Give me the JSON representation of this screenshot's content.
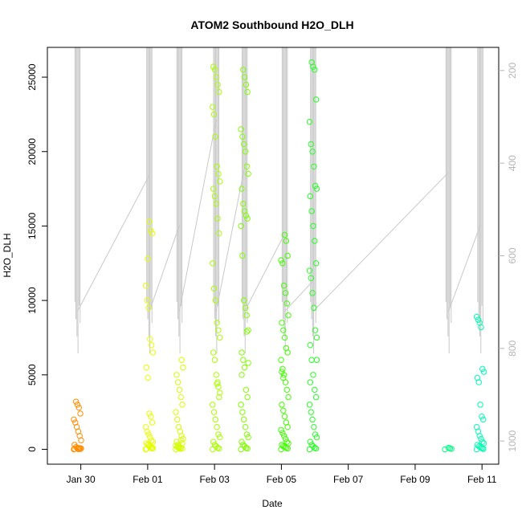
{
  "chart_data": {
    "type": "scatter",
    "title": "ATOM2 Southbound H2O_DLH",
    "xlabel": "Date",
    "ylabel": "H2O_DLH",
    "x_ticks": [
      "Jan 30",
      "Feb 01",
      "Feb 03",
      "Feb 05",
      "Feb 07",
      "Feb 09",
      "Feb 11"
    ],
    "x_tick_values": [
      29,
      31,
      33,
      35,
      37,
      39,
      41
    ],
    "xlim": [
      28,
      41.5
    ],
    "ylim": [
      -1000,
      27000
    ],
    "y_ticks": [
      0,
      5000,
      10000,
      15000,
      20000,
      25000
    ],
    "y2_label": "",
    "y2_ticks": [
      200,
      400,
      600,
      800,
      1000
    ],
    "y2_lim": [
      1050,
      150
    ],
    "grid": false,
    "point_clusters": [
      {
        "day": 28.9,
        "color": "#ff8c00",
        "values": [
          0,
          20,
          50,
          100,
          150,
          300,
          600,
          900,
          1200,
          1500,
          1800,
          2000,
          2400,
          2800,
          3000,
          3200,
          30,
          60,
          80,
          10
        ]
      },
      {
        "day": 31.05,
        "color": "#e6ff00",
        "values": [
          0,
          50,
          100,
          200,
          300,
          400,
          500,
          600,
          800,
          1000,
          1200,
          1500,
          1800,
          2200,
          2400,
          4800,
          5500,
          6500,
          7000,
          7400,
          9500,
          10000,
          11000,
          14500,
          14700,
          15300,
          12800,
          20,
          80,
          150,
          250,
          350
        ]
      },
      {
        "day": 31.95,
        "color": "#d4ff00",
        "values": [
          0,
          50,
          100,
          200,
          300,
          500,
          700,
          900,
          1200,
          1500,
          2000,
          2500,
          3000,
          3500,
          4000,
          4500,
          5000,
          5500,
          6000,
          30,
          80,
          150,
          250,
          400,
          600
        ]
      },
      {
        "day": 33.05,
        "color": "#a8ff00",
        "values": [
          0,
          50,
          100,
          200,
          300,
          500,
          800,
          1000,
          1500,
          2000,
          2500,
          3000,
          3500,
          4500,
          5000,
          6000,
          6500,
          7500,
          8000,
          8500,
          10000,
          10800,
          12500,
          14500,
          15500,
          16500,
          17000,
          17500,
          18000,
          18500,
          19000,
          21000,
          22500,
          23000,
          24000,
          24500,
          25000,
          25500,
          25700,
          3800,
          4200,
          4400
        ]
      },
      {
        "day": 33.9,
        "color": "#80ff00",
        "values": [
          0,
          50,
          100,
          200,
          300,
          500,
          800,
          1000,
          1500,
          2000,
          2500,
          3000,
          3500,
          4000,
          5500,
          6000,
          6500,
          8000,
          9000,
          9500,
          10000,
          13000,
          15000,
          15500,
          15700,
          16000,
          16500,
          17500,
          18500,
          19000,
          20000,
          20500,
          21000,
          21500,
          24000,
          24500,
          25000,
          25500,
          5000,
          5800,
          7900
        ]
      },
      {
        "day": 35.1,
        "color": "#40ff00",
        "values": [
          0,
          50,
          100,
          150,
          200,
          300,
          400,
          500,
          700,
          900,
          1100,
          1300,
          1500,
          1800,
          2200,
          2600,
          3000,
          3500,
          4000,
          4500,
          5000,
          5400,
          6000,
          6500,
          6800,
          7500,
          8000,
          8500,
          9000,
          9800,
          10500,
          11000,
          12500,
          12700,
          13000,
          14000,
          14400,
          4800,
          5200
        ]
      },
      {
        "day": 35.95,
        "color": "#26ff26",
        "values": [
          0,
          50,
          100,
          200,
          300,
          500,
          800,
          1000,
          1500,
          2000,
          2500,
          3000,
          3500,
          4000,
          5000,
          6000,
          7000,
          7500,
          8000,
          9500,
          10500,
          11500,
          12000,
          12500,
          14000,
          15000,
          16000,
          17000,
          17500,
          17700,
          19000,
          20000,
          20500,
          22000,
          23500,
          25500,
          25700,
          26000,
          4500,
          6000
        ]
      },
      {
        "day": 40.0,
        "color": "#00ff80",
        "values": [
          0,
          30,
          60,
          100
        ]
      },
      {
        "day": 40.95,
        "color": "#00ffb0",
        "values": [
          0,
          50,
          100,
          150,
          200,
          300,
          400,
          500,
          700,
          900,
          1200,
          1500,
          2000,
          2200,
          3000,
          4500,
          4800,
          5200,
          5400,
          8200,
          8500,
          8700,
          8900,
          20,
          80
        ]
      }
    ],
    "altitude_track_color": "#c8c8c8"
  }
}
